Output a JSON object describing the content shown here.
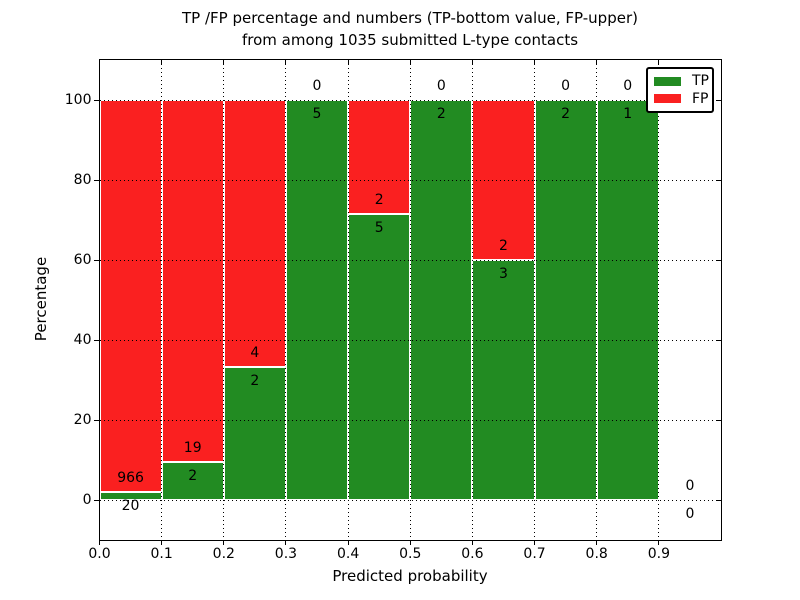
{
  "figure": {
    "title_line1": "TP /FP percentage and numbers (TP-bottom value, FP-upper)",
    "title_line2": "from among 1035 submitted L-type contacts"
  },
  "chart_data": {
    "type": "bar",
    "stacked": true,
    "title": "TP /FP percentage and numbers (TP-bottom value, FP-upper)\nfrom among 1035 submitted L-type contacts",
    "xlabel": "Predicted probability",
    "ylabel": "Percentage",
    "xlim": [
      0.0,
      1.0
    ],
    "ylim": [
      -10,
      110
    ],
    "x_tick_labels": [
      "0.0",
      "0.1",
      "0.2",
      "0.3",
      "0.4",
      "0.5",
      "0.6",
      "0.7",
      "0.8",
      "0.9"
    ],
    "x_tick_values": [
      0.0,
      0.1,
      0.2,
      0.3,
      0.4,
      0.5,
      0.6,
      0.7,
      0.8,
      0.9
    ],
    "y_tick_labels": [
      "0",
      "20",
      "40",
      "60",
      "80",
      "100"
    ],
    "y_tick_values": [
      0,
      20,
      40,
      60,
      80,
      100
    ],
    "grid": true,
    "legend_position": "upper right",
    "legend": [
      {
        "label": "TP",
        "color": "#228B22"
      },
      {
        "label": "FP",
        "color": "#fa2020"
      }
    ],
    "colors": {
      "tp": "#228B22",
      "fp": "#fa2020",
      "text": "#000000",
      "background": "#ffffff"
    },
    "series": [
      {
        "name": "TP",
        "values": [
          20,
          2,
          2,
          5,
          5,
          2,
          3,
          2,
          1,
          0
        ]
      },
      {
        "name": "FP",
        "values": [
          966,
          19,
          4,
          0,
          2,
          0,
          2,
          0,
          0,
          0
        ]
      }
    ],
    "bins": [
      {
        "x0": 0.0,
        "x1": 0.1,
        "tp": 20,
        "fp": 966,
        "tp_pct": 2.0
      },
      {
        "x0": 0.1,
        "x1": 0.2,
        "tp": 2,
        "fp": 19,
        "tp_pct": 9.5
      },
      {
        "x0": 0.2,
        "x1": 0.3,
        "tp": 2,
        "fp": 4,
        "tp_pct": 33.3
      },
      {
        "x0": 0.3,
        "x1": 0.4,
        "tp": 5,
        "fp": 0,
        "tp_pct": 100
      },
      {
        "x0": 0.4,
        "x1": 0.5,
        "tp": 5,
        "fp": 2,
        "tp_pct": 71.4
      },
      {
        "x0": 0.5,
        "x1": 0.6,
        "tp": 2,
        "fp": 0,
        "tp_pct": 100
      },
      {
        "x0": 0.6,
        "x1": 0.7,
        "tp": 3,
        "fp": 2,
        "tp_pct": 60
      },
      {
        "x0": 0.7,
        "x1": 0.8,
        "tp": 2,
        "fp": 0,
        "tp_pct": 100
      },
      {
        "x0": 0.8,
        "x1": 0.9,
        "tp": 1,
        "fp": 0,
        "tp_pct": 100
      },
      {
        "x0": 0.9,
        "x1": 1.0,
        "tp": 0,
        "fp": 0,
        "tp_pct": null
      }
    ]
  }
}
